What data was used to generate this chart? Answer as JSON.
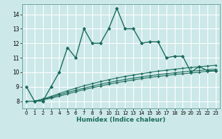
{
  "xlabel": "Humidex (Indice chaleur)",
  "xlim": [
    -0.5,
    23.5
  ],
  "ylim": [
    7.5,
    14.7
  ],
  "yticks": [
    8,
    9,
    10,
    11,
    12,
    13,
    14
  ],
  "xticks": [
    0,
    1,
    2,
    3,
    4,
    5,
    6,
    7,
    8,
    9,
    10,
    11,
    12,
    13,
    14,
    15,
    16,
    17,
    18,
    19,
    20,
    21,
    22,
    23
  ],
  "background_color": "#cce8e8",
  "grid_color": "#b0d8d8",
  "line_color": "#1a6b5a",
  "lines": [
    {
      "x": [
        0,
        1,
        2,
        3,
        4,
        5,
        6,
        7,
        8,
        9,
        10,
        11,
        12,
        13,
        14,
        15,
        16,
        17,
        18,
        19,
        20,
        21,
        22,
        23
      ],
      "y": [
        9.0,
        8.0,
        8.0,
        9.0,
        10.0,
        11.7,
        11.0,
        13.0,
        12.0,
        12.0,
        13.0,
        14.4,
        13.0,
        13.0,
        12.0,
        12.1,
        12.1,
        11.0,
        11.1,
        11.1,
        10.0,
        10.4,
        10.1,
        10.1
      ],
      "marker": "D",
      "markersize": 2.0,
      "linewidth": 1.0
    },
    {
      "x": [
        0,
        1,
        2,
        3,
        4,
        5,
        6,
        7,
        8,
        9,
        10,
        11,
        12,
        13,
        14,
        15,
        16,
        17,
        18,
        19,
        20,
        21,
        22,
        23
      ],
      "y": [
        8.0,
        8.0,
        8.1,
        8.2,
        8.35,
        8.5,
        8.65,
        8.8,
        8.93,
        9.05,
        9.17,
        9.28,
        9.38,
        9.47,
        9.56,
        9.64,
        9.71,
        9.78,
        9.84,
        9.9,
        9.95,
        10.0,
        10.05,
        10.1
      ],
      "marker": "+",
      "markersize": 2.5,
      "linewidth": 0.8
    },
    {
      "x": [
        0,
        1,
        2,
        3,
        4,
        5,
        6,
        7,
        8,
        9,
        10,
        11,
        12,
        13,
        14,
        15,
        16,
        17,
        18,
        19,
        20,
        21,
        22,
        23
      ],
      "y": [
        8.0,
        8.0,
        8.12,
        8.27,
        8.44,
        8.6,
        8.76,
        8.9,
        9.04,
        9.17,
        9.29,
        9.4,
        9.5,
        9.59,
        9.68,
        9.76,
        9.83,
        9.9,
        9.96,
        10.02,
        10.07,
        10.12,
        10.17,
        10.21
      ],
      "marker": "+",
      "markersize": 2.5,
      "linewidth": 0.8
    },
    {
      "x": [
        0,
        1,
        2,
        3,
        4,
        5,
        6,
        7,
        8,
        9,
        10,
        11,
        12,
        13,
        14,
        15,
        16,
        17,
        18,
        19,
        20,
        21,
        22,
        23
      ],
      "y": [
        8.0,
        8.0,
        8.15,
        8.33,
        8.53,
        8.72,
        8.9,
        9.06,
        9.21,
        9.35,
        9.48,
        9.6,
        9.71,
        9.81,
        9.9,
        9.99,
        10.07,
        10.14,
        10.21,
        10.27,
        10.33,
        10.38,
        10.43,
        10.48
      ],
      "marker": "+",
      "markersize": 2.5,
      "linewidth": 0.8
    }
  ]
}
